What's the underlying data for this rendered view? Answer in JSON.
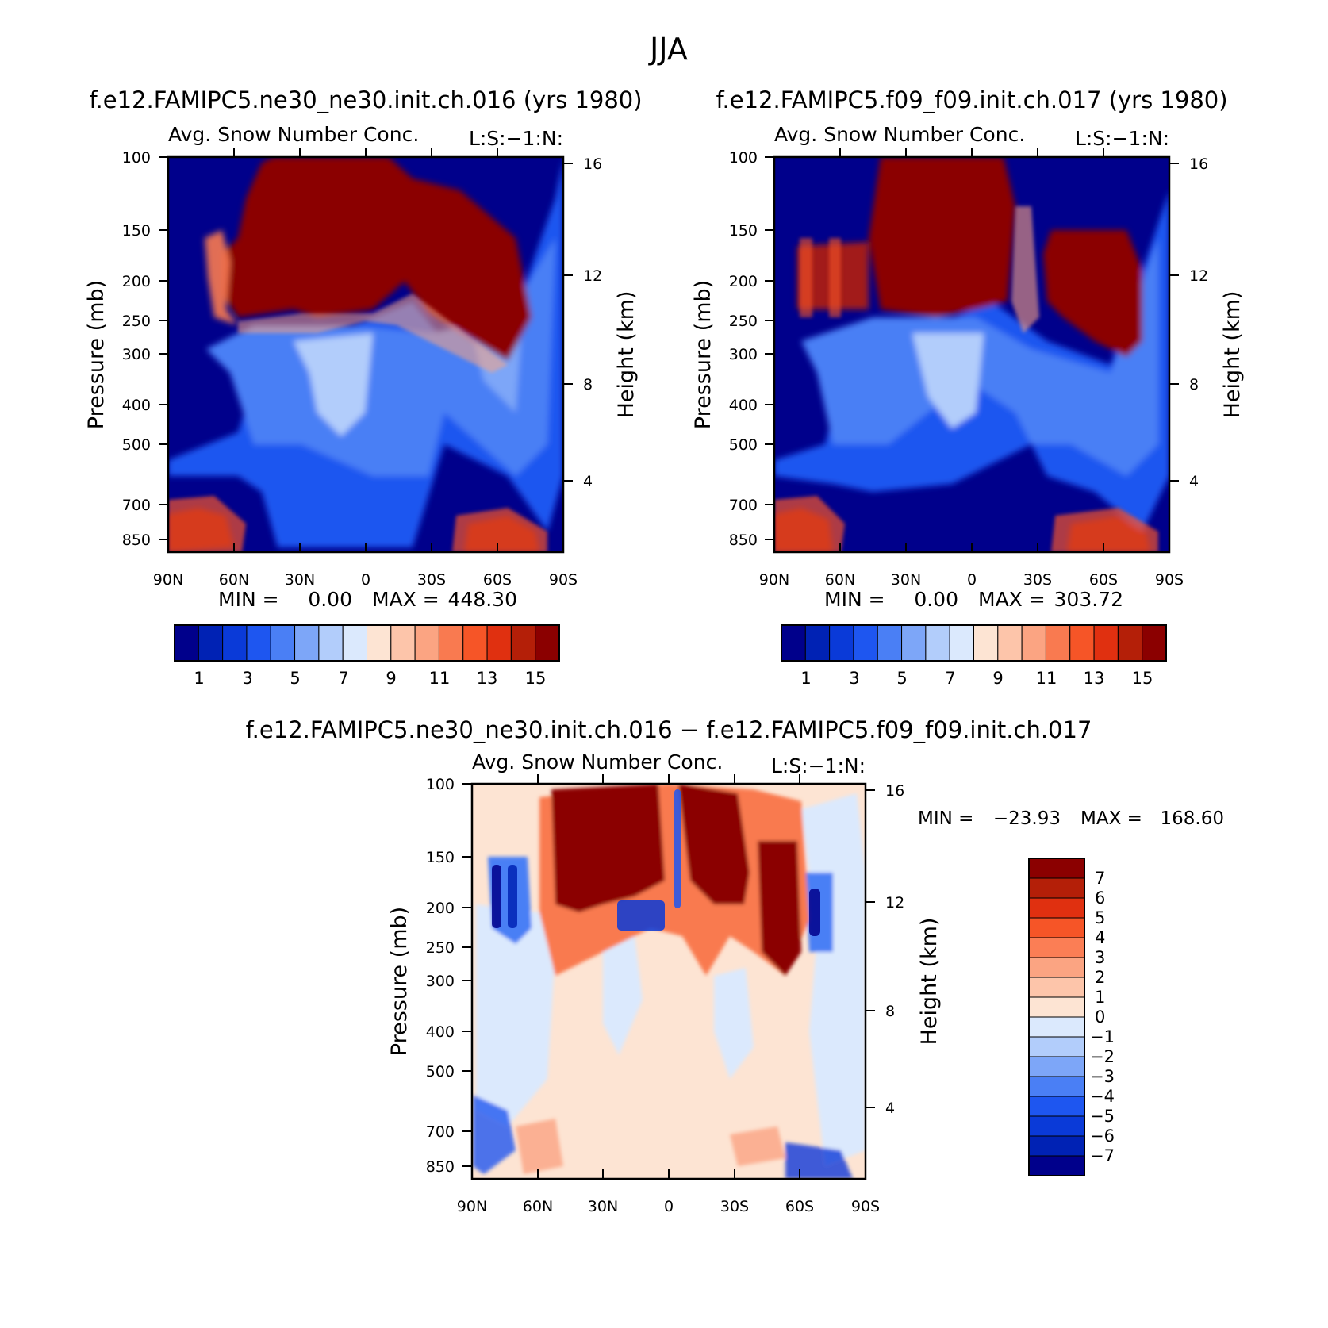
{
  "figure_title": "JJA",
  "colors": {
    "absolute_scale": [
      "#00008b",
      "#0022b4",
      "#0a3ad8",
      "#1e56f0",
      "#4a7ff5",
      "#7da6f8",
      "#b2cdfb",
      "#dbe9fd",
      "#fde4d3",
      "#fdc5aa",
      "#fba482",
      "#f97a50",
      "#f65527",
      "#e03010",
      "#b41f08",
      "#8b0000"
    ],
    "diff_scale": [
      "#8b0000",
      "#b41f08",
      "#e03010",
      "#f65527",
      "#fb7e55",
      "#fba482",
      "#fdc5aa",
      "#fde4d3",
      "#dbe9fd",
      "#b2cdfb",
      "#7da6f8",
      "#4a7ff5",
      "#1e56f0",
      "#0a3ad8",
      "#0022b4",
      "#00008b"
    ]
  },
  "chart_data": [
    {
      "type": "heatmap",
      "panel": "top-left",
      "title": "f.e12.FAMIPC5.ne30_ne30.init.ch.016 (yrs 1980)",
      "subtitle": "Avg. Snow Number Conc.",
      "corner_label": "L:S:−1:N:",
      "ylabel": "Pressure (mb)",
      "y2label": "Height (km)",
      "x_ticks": [
        "90N",
        "60N",
        "30N",
        "0",
        "30S",
        "60S",
        "90S"
      ],
      "y_ticks": [
        "100",
        "150",
        "200",
        "250",
        "300",
        "400",
        "500",
        "700",
        "850"
      ],
      "y_tick_values": [
        100,
        150,
        200,
        250,
        300,
        400,
        500,
        700,
        850
      ],
      "y2_ticks": [
        "16",
        "12",
        "8",
        "4"
      ],
      "xlim": [
        90,
        -90
      ],
      "ylim": [
        100,
        900
      ],
      "min_label": "MIN =",
      "min_value": "0.00",
      "max_label": "MAX =",
      "max_value": "448.30",
      "colorbar_labels": [
        "1",
        "3",
        "5",
        "7",
        "9",
        "11",
        "13",
        "15"
      ],
      "colorbar_levels": [
        1,
        2,
        3,
        4,
        5,
        6,
        7,
        8,
        9,
        10,
        11,
        12,
        13,
        14,
        15
      ]
    },
    {
      "type": "heatmap",
      "panel": "top-right",
      "title": "f.e12.FAMIPC5.f09_f09.init.ch.017 (yrs 1980)",
      "subtitle": "Avg. Snow Number Conc.",
      "corner_label": "L:S:−1:N:",
      "ylabel": "Pressure (mb)",
      "y2label": "Height (km)",
      "x_ticks": [
        "90N",
        "60N",
        "30N",
        "0",
        "30S",
        "60S",
        "90S"
      ],
      "y_ticks": [
        "100",
        "150",
        "200",
        "250",
        "300",
        "400",
        "500",
        "700",
        "850"
      ],
      "y_tick_values": [
        100,
        150,
        200,
        250,
        300,
        400,
        500,
        700,
        850
      ],
      "y2_ticks": [
        "16",
        "12",
        "8",
        "4"
      ],
      "xlim": [
        90,
        -90
      ],
      "ylim": [
        100,
        900
      ],
      "min_label": "MIN =",
      "min_value": "0.00",
      "max_label": "MAX =",
      "max_value": "303.72",
      "colorbar_labels": [
        "1",
        "3",
        "5",
        "7",
        "9",
        "11",
        "13",
        "15"
      ],
      "colorbar_levels": [
        1,
        2,
        3,
        4,
        5,
        6,
        7,
        8,
        9,
        10,
        11,
        12,
        13,
        14,
        15
      ]
    },
    {
      "type": "heatmap",
      "panel": "bottom-center",
      "title": "f.e12.FAMIPC5.ne30_ne30.init.ch.016 − f.e12.FAMIPC5.f09_f09.init.ch.017",
      "subtitle": "Avg. Snow Number Conc.",
      "corner_label": "L:S:−1:N:",
      "ylabel": "Pressure (mb)",
      "y2label": "Height (km)",
      "x_ticks": [
        "90N",
        "60N",
        "30N",
        "0",
        "30S",
        "60S",
        "90S"
      ],
      "y_ticks": [
        "100",
        "150",
        "200",
        "250",
        "300",
        "400",
        "500",
        "700",
        "850"
      ],
      "y_tick_values": [
        100,
        150,
        200,
        250,
        300,
        400,
        500,
        700,
        850
      ],
      "y2_ticks": [
        "16",
        "12",
        "8",
        "4"
      ],
      "xlim": [
        90,
        -90
      ],
      "ylim": [
        100,
        900
      ],
      "min_label": "MIN =",
      "min_value": "−23.93",
      "max_label": "MAX =",
      "max_value": "168.60",
      "colorbar_labels": [
        "7",
        "6",
        "5",
        "4",
        "3",
        "2",
        "1",
        "0",
        "−1",
        "−2",
        "−3",
        "−4",
        "−5",
        "−6",
        "−7"
      ],
      "colorbar_levels": [
        7,
        6,
        5,
        4,
        3,
        2,
        1,
        0,
        -1,
        -2,
        -3,
        -4,
        -5,
        -6,
        -7
      ]
    }
  ]
}
